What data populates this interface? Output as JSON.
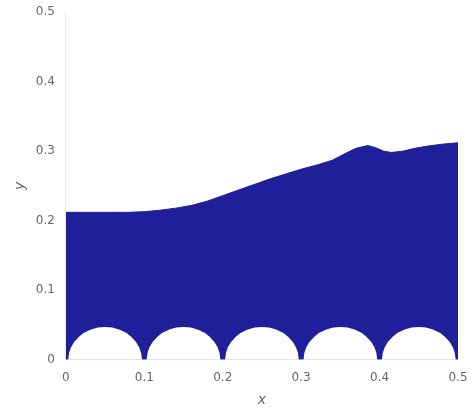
{
  "chart_data": {
    "type": "area",
    "xlabel": "x",
    "ylabel": "y",
    "x": [
      0.0,
      0.02,
      0.04,
      0.06,
      0.08,
      0.1,
      0.12,
      0.14,
      0.16,
      0.18,
      0.2,
      0.22,
      0.24,
      0.26,
      0.28,
      0.3,
      0.32,
      0.34,
      0.355,
      0.37,
      0.385,
      0.395,
      0.405,
      0.415,
      0.43,
      0.445,
      0.46,
      0.48,
      0.5
    ],
    "values": [
      0.212,
      0.212,
      0.212,
      0.212,
      0.212,
      0.213,
      0.215,
      0.218,
      0.222,
      0.228,
      0.236,
      0.244,
      0.252,
      0.26,
      0.267,
      0.274,
      0.28,
      0.287,
      0.296,
      0.304,
      0.308,
      0.305,
      0.3,
      0.298,
      0.3,
      0.304,
      0.307,
      0.31,
      0.312
    ],
    "color": "#1f1f99",
    "xlim": [
      0,
      0.5
    ],
    "ylim": [
      0,
      0.5
    ],
    "xticks": [
      0,
      0.1,
      0.2,
      0.3,
      0.4,
      0.5
    ],
    "yticks": [
      0,
      0.1,
      0.2,
      0.3,
      0.4,
      0.5
    ],
    "grid": false,
    "circles": {
      "x": [
        0.05,
        0.15,
        0.25,
        0.35,
        0.45
      ],
      "y": 0.0,
      "radius": 0.047,
      "color": "#ffffff"
    }
  }
}
